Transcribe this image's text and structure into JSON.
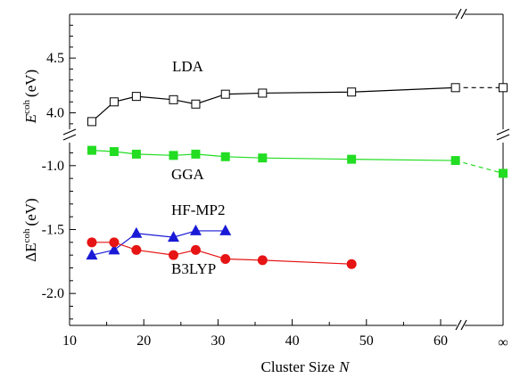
{
  "chart_data": [
    {
      "type": "line",
      "panel": "upper",
      "ylabel": {
        "symbol": "E",
        "superscript": "coh",
        "unit": "(eV)"
      },
      "ylim": [
        3.85,
        4.9
      ],
      "yticks": [
        4.0,
        4.5
      ],
      "ytick_labels": [
        "4.0",
        "4.5"
      ],
      "series": [
        {
          "name": "LDA",
          "color": "#000000",
          "marker": "open-square",
          "points": [
            {
              "x": 13,
              "y": 3.92
            },
            {
              "x": 16,
              "y": 4.1
            },
            {
              "x": 19,
              "y": 4.15
            },
            {
              "x": 24,
              "y": 4.12
            },
            {
              "x": 27,
              "y": 4.08
            },
            {
              "x": 31,
              "y": 4.17
            },
            {
              "x": 36,
              "y": 4.18
            },
            {
              "x": 48,
              "y": 4.19
            },
            {
              "x": 62,
              "y": 4.23
            }
          ],
          "limit": {
            "x": "∞",
            "y": 4.23
          }
        }
      ]
    },
    {
      "type": "line",
      "panel": "lower",
      "ylabel": {
        "symbol": "ΔE",
        "superscript": "coh",
        "unit": "(eV)"
      },
      "ylim": [
        -2.25,
        -0.82
      ],
      "yticks": [
        -1.0,
        -1.5,
        -2.0
      ],
      "ytick_labels": [
        "-1.0",
        "-1.5",
        "-2.0"
      ],
      "series": [
        {
          "name": "GGA",
          "color": "#22dd22",
          "marker": "filled-square",
          "points": [
            {
              "x": 13,
              "y": -0.88
            },
            {
              "x": 16,
              "y": -0.89
            },
            {
              "x": 19,
              "y": -0.91
            },
            {
              "x": 24,
              "y": -0.92
            },
            {
              "x": 27,
              "y": -0.91
            },
            {
              "x": 31,
              "y": -0.93
            },
            {
              "x": 36,
              "y": -0.94
            },
            {
              "x": 48,
              "y": -0.95
            },
            {
              "x": 62,
              "y": -0.96
            }
          ],
          "limit": {
            "x": "∞",
            "y": -1.06
          }
        },
        {
          "name": "HF-MP2",
          "color": "#1a1ad6",
          "marker": "filled-triangle",
          "points": [
            {
              "x": 13,
              "y": -1.7
            },
            {
              "x": 16,
              "y": -1.66
            },
            {
              "x": 19,
              "y": -1.53
            },
            {
              "x": 24,
              "y": -1.56
            },
            {
              "x": 27,
              "y": -1.51
            },
            {
              "x": 31,
              "y": -1.51
            }
          ]
        },
        {
          "name": "B3LYP",
          "color": "#e61414",
          "marker": "filled-circle",
          "points": [
            {
              "x": 13,
              "y": -1.6
            },
            {
              "x": 16,
              "y": -1.6
            },
            {
              "x": 19,
              "y": -1.66
            },
            {
              "x": 24,
              "y": -1.7
            },
            {
              "x": 27,
              "y": -1.66
            },
            {
              "x": 31,
              "y": -1.73
            },
            {
              "x": 36,
              "y": -1.74
            },
            {
              "x": 48,
              "y": -1.77
            }
          ]
        }
      ]
    }
  ],
  "x_axis": {
    "label_text": "Cluster Size",
    "label_var": "N",
    "xlim": [
      10,
      62
    ],
    "xticks": [
      10,
      20,
      30,
      40,
      50,
      60
    ],
    "xtick_labels": [
      "10",
      "20",
      "30",
      "40",
      "50",
      "60"
    ],
    "infinity_label": "∞",
    "axis_break": true
  }
}
